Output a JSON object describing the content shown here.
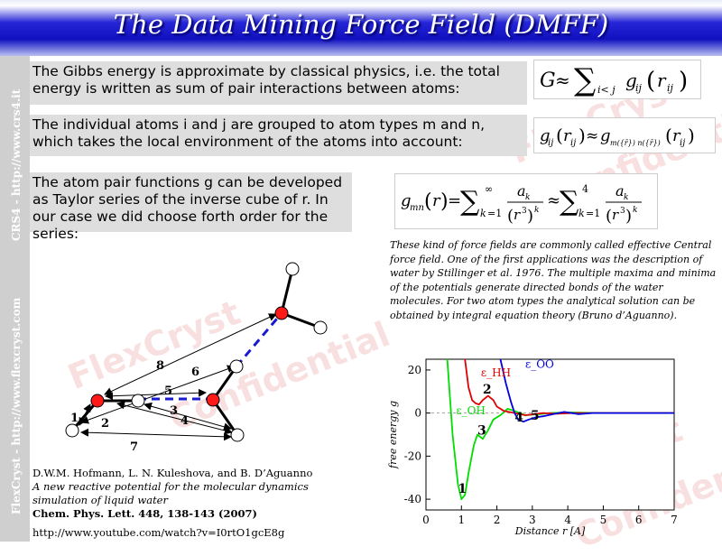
{
  "title": "The Data Mining Force Field (DMFF)",
  "sidebar": {
    "upper_text": "CRS4 - http://www.crs4.it",
    "lower_text": "FlexCryst - http://www.flexcryst.com"
  },
  "watermarks": [
    "FlexCryst",
    "Confidential"
  ],
  "blocks": [
    {
      "text": "The Gibbs energy is approximate by classical physics, i.e. the total energy is written as sum of pair interactions between atoms:"
    },
    {
      "text": "The individual atoms i and j are grouped to atom types m and n, which takes the local environment of the atoms into account:"
    },
    {
      "text": "The atom pair functions g can be developed as Taylor series of the inverse cube of r. In our case we did choose forth order for the series:"
    }
  ],
  "note": "These kind of force fields are commonly called effective Central force field. One of the first applications was the description of water by Stillinger et al. 1976. The multiple maxima and minima of the potentials generate directed bonds of the water molecules. For  two atom types the analytical solution can be obtained by integral equation theory (Bruno d’Aguanno).",
  "citation": {
    "authors": "D.W.M. Hofmann, L. N. Kuleshova, and B. D’Aguanno",
    "title": "A new reactive potential for the molecular dynamics simulation of liquid water",
    "journal": "Chem. Phys. Lett. 448, 138-143 (2007)",
    "url": "http://www.youtube.com/watch?v=I0rtO1gcE8g"
  },
  "diagram": {
    "labels": [
      "1",
      "2",
      "3",
      "4",
      "5",
      "6",
      "7",
      "8"
    ]
  },
  "colors": {
    "oxygen": "#ff1a1a",
    "hydrogen": "#ffffff",
    "hbond": "#1a1ad0",
    "hh": "#e00000",
    "oo": "#0000e0",
    "oh": "#00dd00"
  },
  "chart_data": {
    "type": "line",
    "xlabel": "Distance r [A]",
    "ylabel": "free energy g",
    "xlim": [
      0,
      7
    ],
    "ylim": [
      -45,
      25
    ],
    "xticks": [
      "0",
      "1",
      "2",
      "3",
      "4",
      "5",
      "6",
      "7"
    ],
    "yticks": [
      "20",
      "0",
      "-20",
      "-40"
    ],
    "series_labels": {
      "hh": "ε_HH",
      "oo": "ε_OO",
      "oh": "ε_OH"
    },
    "annotations": [
      "1",
      "2",
      "3",
      "4",
      "5"
    ],
    "series": [
      {
        "key": "oh",
        "x": [
          0.6,
          0.75,
          0.9,
          1.0,
          1.1,
          1.2,
          1.35,
          1.45,
          1.6,
          1.75,
          1.9,
          2.1,
          2.3,
          2.5,
          2.8,
          3.2,
          3.5,
          4.0,
          5.0,
          6.0,
          7.0
        ],
        "y": [
          25,
          -10,
          -33,
          -40,
          -38,
          -28,
          -15,
          -10,
          -12,
          -8,
          -3,
          -1,
          2,
          1,
          -1,
          -0.5,
          0,
          0.3,
          0,
          0,
          0
        ]
      },
      {
        "key": "hh",
        "x": [
          1.1,
          1.2,
          1.3,
          1.4,
          1.5,
          1.6,
          1.75,
          1.9,
          2.0,
          2.2,
          2.5,
          2.8,
          3.0,
          3.3,
          3.7,
          4.2,
          5.0,
          6.0,
          7.0
        ],
        "y": [
          25,
          12,
          6,
          4.5,
          4,
          6,
          8,
          6,
          3,
          1,
          0,
          -1,
          -0.6,
          0,
          -0.3,
          0,
          0,
          0,
          0
        ]
      },
      {
        "key": "oo",
        "x": [
          2.1,
          2.25,
          2.4,
          2.5,
          2.6,
          2.75,
          2.9,
          3.1,
          3.3,
          3.6,
          3.9,
          4.3,
          4.7,
          5.2,
          6.0,
          7.0
        ],
        "y": [
          25,
          14,
          5,
          0,
          -3,
          -4,
          -3,
          -2,
          -1.5,
          -0.5,
          0.5,
          -0.5,
          0,
          0,
          0,
          0
        ]
      }
    ]
  }
}
